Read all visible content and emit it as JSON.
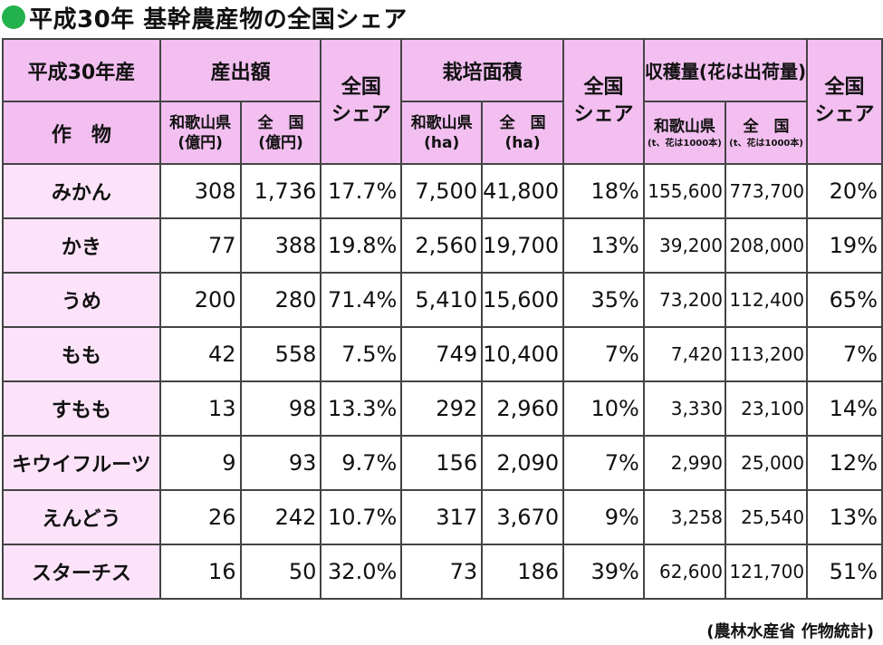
{
  "title": "平成30年 基幹農産物の全国シェア",
  "header": {
    "year_product": "平成30年産",
    "crop": "作　物",
    "output": "産出額",
    "share": "全国\nシェア",
    "area": "栽培面積",
    "harvest": "収穫量(花は出荷量)",
    "wakayama_yen": "和歌山県\n(億円)",
    "national_yen": "全　国\n(億円)",
    "wakayama_ha": "和歌山県\n(ha)",
    "national_ha": "全　国\n(ha)",
    "wakayama_t": "和歌山県",
    "wakayama_t_unit": "(t、花は1000本)",
    "national_t": "全　国",
    "national_t_unit": "(t、花は1000本)"
  },
  "rows": [
    {
      "crop": "みかん",
      "out_w": "308",
      "out_n": "1,736",
      "out_s": "17.7%",
      "area_w": "7,500",
      "area_n": "41,800",
      "area_s": "18%",
      "har_w": "155,600",
      "har_n": "773,700",
      "har_s": "20%"
    },
    {
      "crop": "かき",
      "out_w": "77",
      "out_n": "388",
      "out_s": "19.8%",
      "area_w": "2,560",
      "area_n": "19,700",
      "area_s": "13%",
      "har_w": "39,200",
      "har_n": "208,000",
      "har_s": "19%"
    },
    {
      "crop": "うめ",
      "out_w": "200",
      "out_n": "280",
      "out_s": "71.4%",
      "area_w": "5,410",
      "area_n": "15,600",
      "area_s": "35%",
      "har_w": "73,200",
      "har_n": "112,400",
      "har_s": "65%"
    },
    {
      "crop": "もも",
      "out_w": "42",
      "out_n": "558",
      "out_s": "7.5%",
      "area_w": "749",
      "area_n": "10,400",
      "area_s": "7%",
      "har_w": "7,420",
      "har_n": "113,200",
      "har_s": "7%"
    },
    {
      "crop": "すもも",
      "out_w": "13",
      "out_n": "98",
      "out_s": "13.3%",
      "area_w": "292",
      "area_n": "2,960",
      "area_s": "10%",
      "har_w": "3,330",
      "har_n": "23,100",
      "har_s": "14%"
    },
    {
      "crop": "キウイフルーツ",
      "out_w": "9",
      "out_n": "93",
      "out_s": "9.7%",
      "area_w": "156",
      "area_n": "2,090",
      "area_s": "7%",
      "har_w": "2,990",
      "har_n": "25,000",
      "har_s": "12%"
    },
    {
      "crop": "えんどう",
      "out_w": "26",
      "out_n": "242",
      "out_s": "10.7%",
      "area_w": "317",
      "area_n": "3,670",
      "area_s": "9%",
      "har_w": "3,258",
      "har_n": "25,540",
      "har_s": "13%"
    },
    {
      "crop": "スターチス",
      "out_w": "16",
      "out_n": "50",
      "out_s": "32.0%",
      "area_w": "73",
      "area_n": "186",
      "area_s": "39%",
      "har_w": "62,600",
      "har_n": "121,700",
      "har_s": "51%"
    }
  ],
  "source": "(農林水産省 作物統計)",
  "colors": {
    "header": "#f2bff0",
    "crop_cell": "#fde3f9",
    "dot": "#22b14c"
  }
}
